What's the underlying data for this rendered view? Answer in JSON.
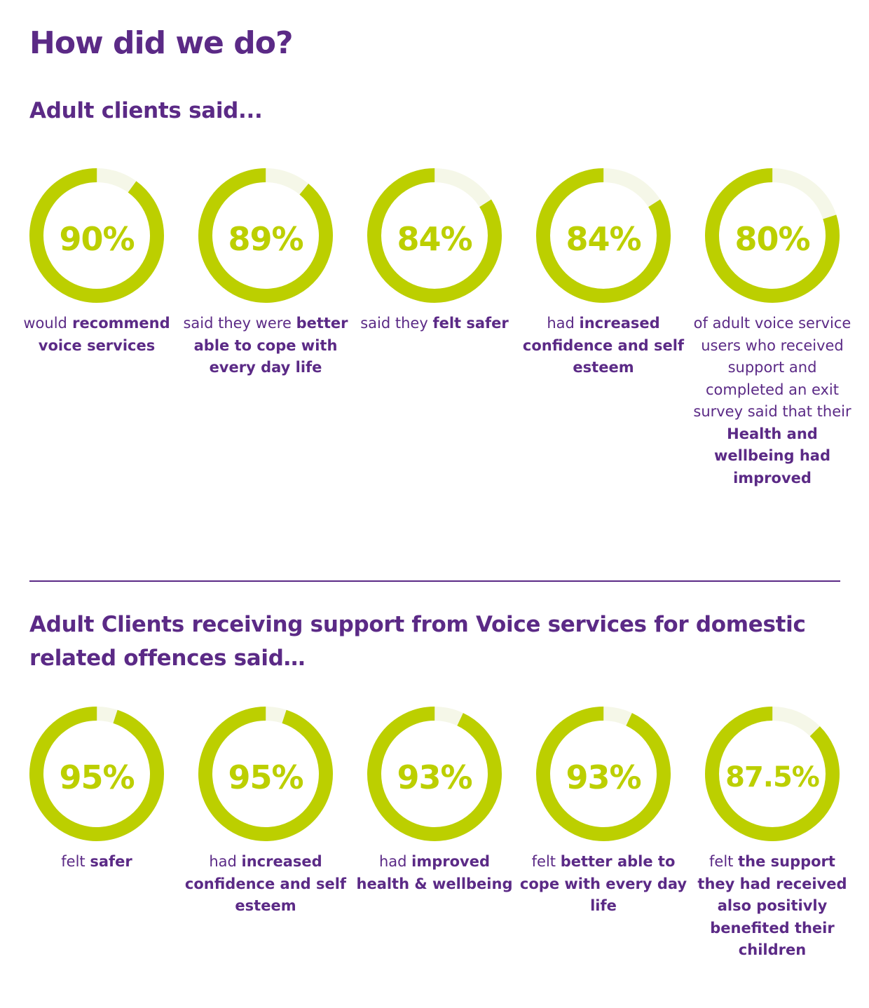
{
  "title": "How did we do?",
  "colors": {
    "accent": "#bccf00",
    "track": "#f5f7e8",
    "text": "#5b2a86"
  },
  "sections": [
    {
      "heading": "Adult clients said...",
      "stats": [
        {
          "label": "90%",
          "value": 90,
          "caption": [
            {
              "t": "would",
              "b": false
            },
            {
              "t": " recommend voice services",
              "b": true
            }
          ]
        },
        {
          "label": "89%",
          "value": 89,
          "caption": [
            {
              "t": "said they were ",
              "b": false
            },
            {
              "t": "better able to cope with every day life",
              "b": true
            }
          ]
        },
        {
          "label": "84%",
          "value": 84,
          "caption": [
            {
              "t": "said they ",
              "b": false
            },
            {
              "t": "felt safer",
              "b": true
            }
          ]
        },
        {
          "label": "84%",
          "value": 84,
          "caption": [
            {
              "t": "had ",
              "b": false
            },
            {
              "t": "increased confidence and self esteem",
              "b": true
            }
          ]
        },
        {
          "label": "80%",
          "value": 80,
          "caption": [
            {
              "t": "of adult voice service users who received support and completed an exit survey said that their ",
              "b": false
            },
            {
              "t": "Health and wellbeing had improved",
              "b": true
            }
          ]
        }
      ]
    },
    {
      "heading": "Adult Clients receiving support from Voice services  for domestic related offences said…",
      "stats": [
        {
          "label": "95%",
          "value": 95,
          "caption": [
            {
              "t": "felt ",
              "b": false
            },
            {
              "t": "safer",
              "b": true
            }
          ]
        },
        {
          "label": "95%",
          "value": 95,
          "caption": [
            {
              "t": "had ",
              "b": false
            },
            {
              "t": "increased confidence and self esteem",
              "b": true
            }
          ]
        },
        {
          "label": "93%",
          "value": 93,
          "caption": [
            {
              "t": "had ",
              "b": false
            },
            {
              "t": "improved health & wellbeing",
              "b": true
            }
          ]
        },
        {
          "label": "93%",
          "value": 93,
          "caption": [
            {
              "t": "felt ",
              "b": false
            },
            {
              "t": "better able to cope with every day life",
              "b": true
            }
          ]
        },
        {
          "label": "87.5%",
          "value": 87.5,
          "caption": [
            {
              "t": "felt ",
              "b": false
            },
            {
              "t": "the support they had received also positivly benefited their children",
              "b": true
            }
          ]
        }
      ]
    }
  ],
  "chart_data": [
    {
      "type": "pie",
      "title": "Adult clients said...",
      "categories": [
        "would recommend voice services",
        "said they were better able to cope with every day life",
        "said they felt safer",
        "had increased confidence and self esteem",
        "of adult voice service users who received support and completed an exit survey said that their Health and wellbeing had improved"
      ],
      "values": [
        90,
        89,
        84,
        84,
        80
      ]
    },
    {
      "type": "pie",
      "title": "Adult Clients receiving support from Voice services  for domestic related offences said…",
      "categories": [
        "felt safer",
        "had increased confidence and self esteem",
        "had improved health & wellbeing",
        "felt better able to cope with every day life",
        "felt the support they had received also positivly benefited their children"
      ],
      "values": [
        95,
        95,
        93,
        93,
        87.5
      ]
    }
  ]
}
